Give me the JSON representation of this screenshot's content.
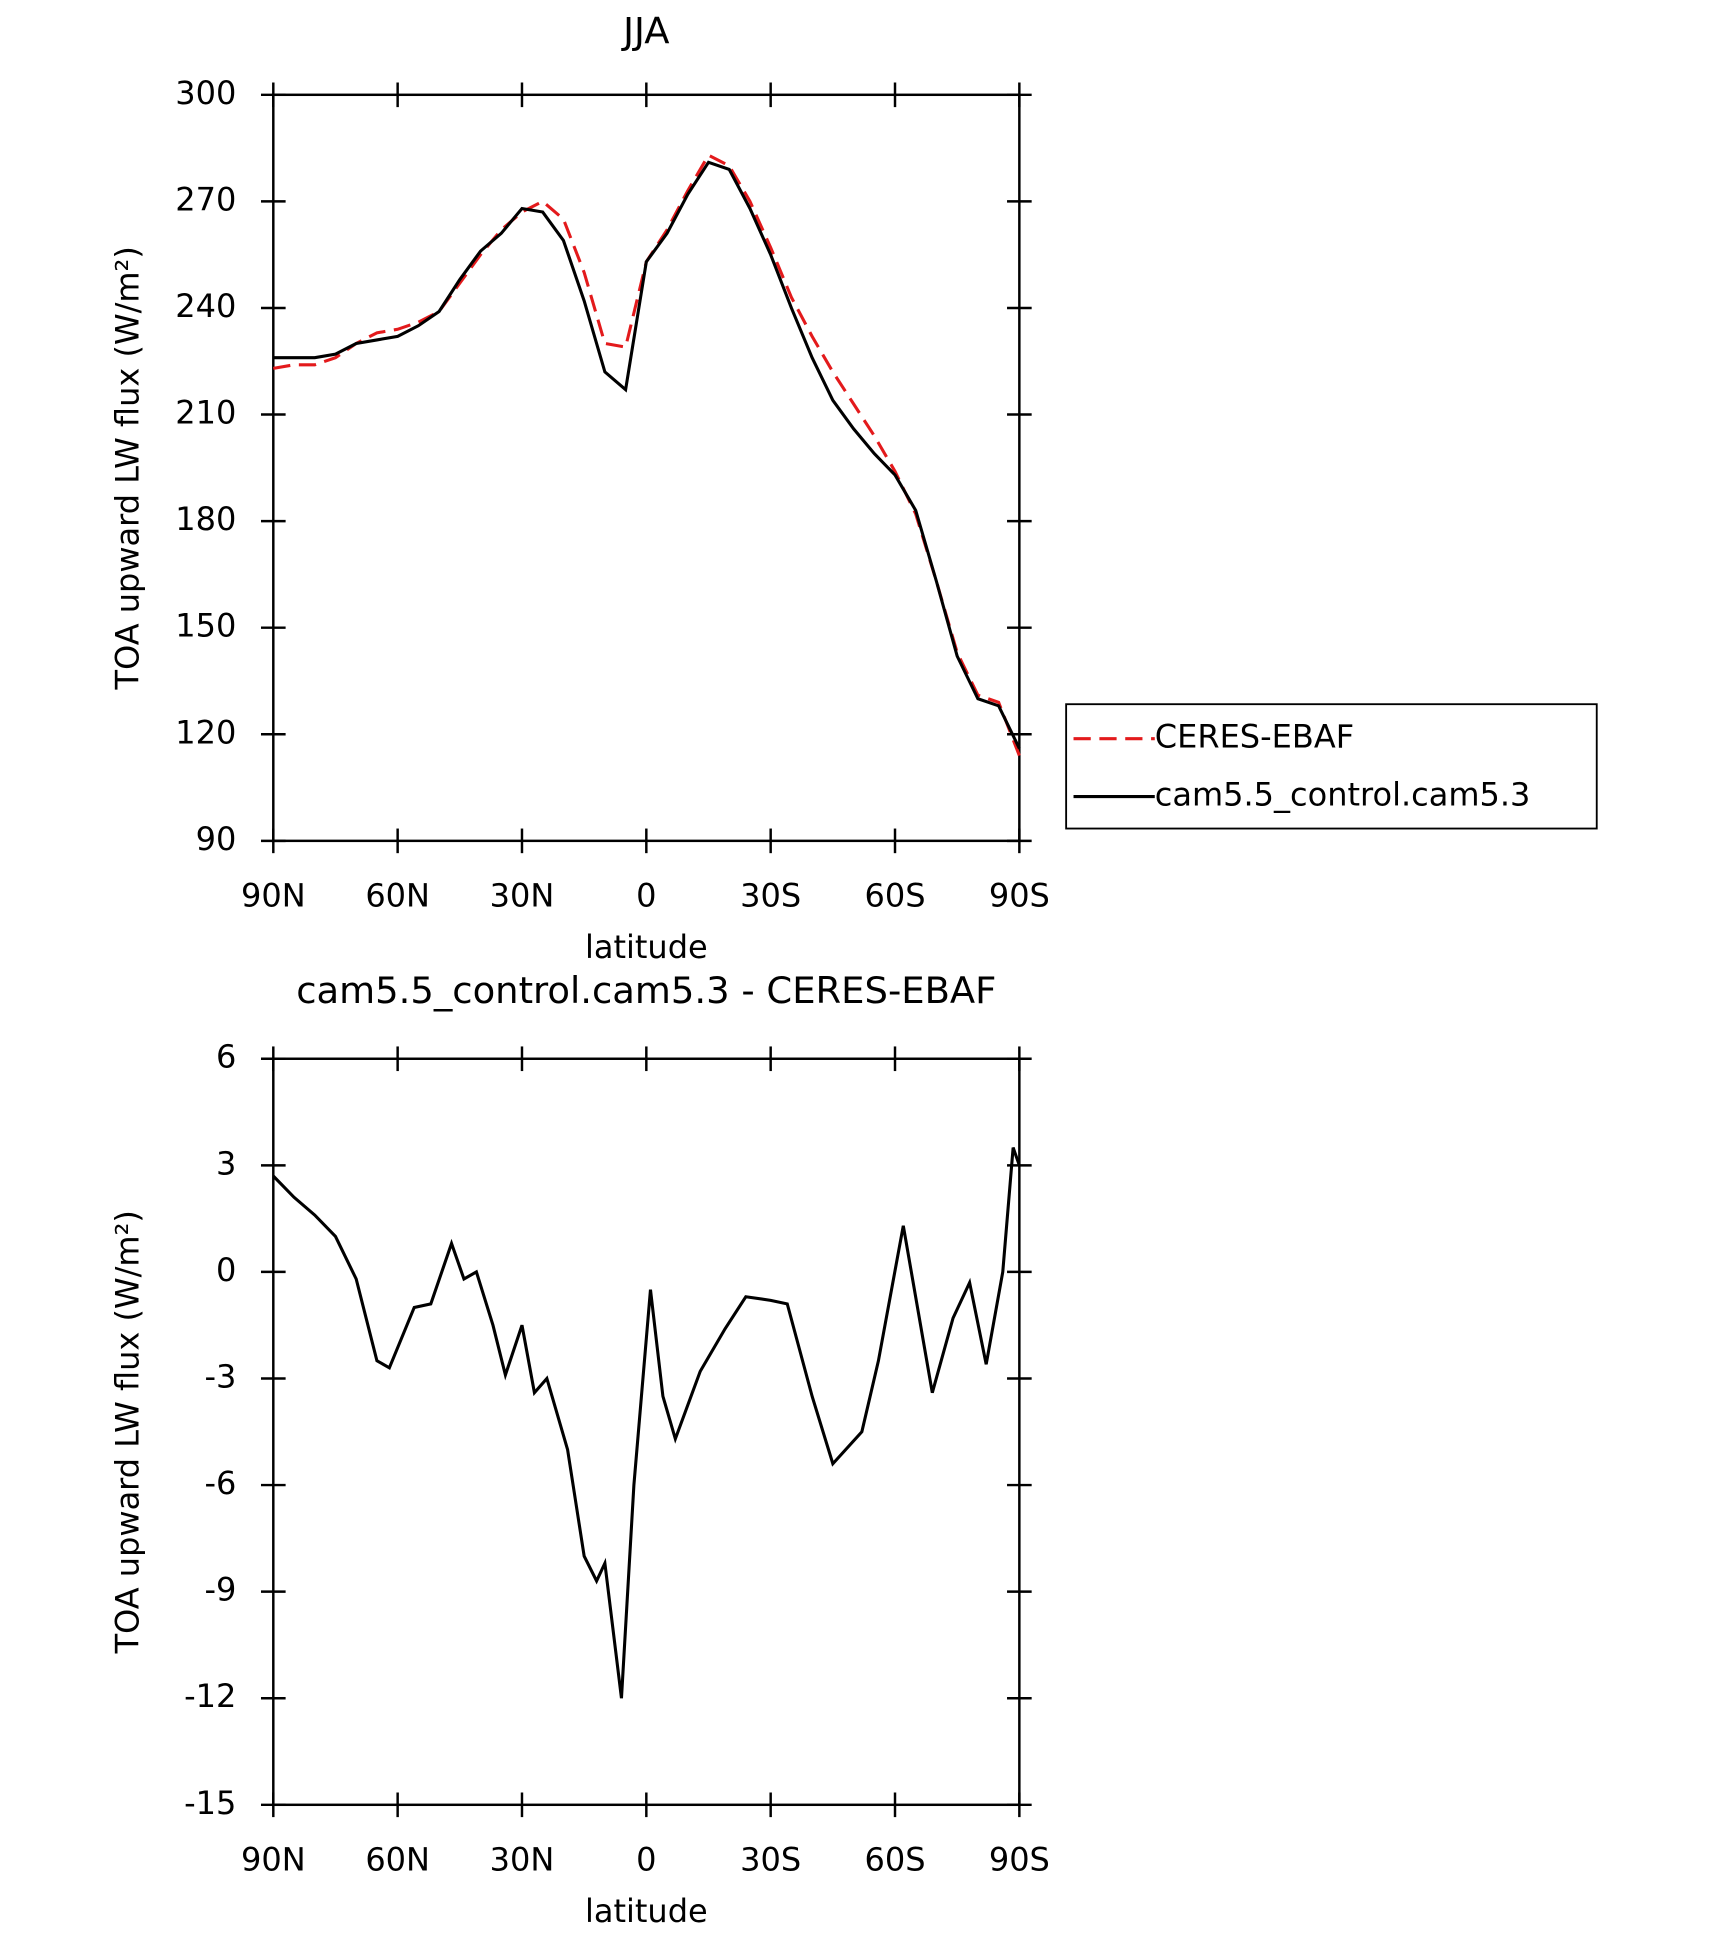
{
  "chart_data": [
    {
      "type": "line",
      "title": "JJA",
      "xlabel": "latitude",
      "ylabel": "TOA upward LW flux (W/m²)",
      "xlim": [
        90,
        -90
      ],
      "ylim": [
        90,
        300
      ],
      "xticks": [
        {
          "value": 90,
          "label": "90N"
        },
        {
          "value": 60,
          "label": "60N"
        },
        {
          "value": 30,
          "label": "30N"
        },
        0,
        {
          "value": -30,
          "label": "30S"
        },
        {
          "value": -60,
          "label": "60S"
        },
        {
          "value": -90,
          "label": "90S"
        }
      ],
      "yticks": [
        90,
        120,
        150,
        180,
        210,
        240,
        270,
        300
      ],
      "legend": "outside right",
      "x": [
        90,
        85,
        80,
        75,
        70,
        65,
        60,
        55,
        50,
        45,
        40,
        35,
        30,
        25,
        20,
        15,
        10,
        5,
        0,
        -5,
        -10,
        -15,
        -20,
        -25,
        -30,
        -35,
        -40,
        -45,
        -50,
        -55,
        -60,
        -65,
        -70,
        -75,
        -80,
        -85,
        -90
      ],
      "series": [
        {
          "name": "CERES-EBAF",
          "color": "#e31a1c",
          "style": "dashed",
          "values": [
            223,
            224,
            224,
            226,
            230,
            233,
            234,
            236,
            239,
            247,
            255,
            262,
            267,
            270,
            265,
            250,
            230,
            229,
            253,
            262,
            273,
            283,
            280,
            270,
            257,
            243,
            232,
            222,
            213,
            204,
            194,
            182,
            163,
            143,
            131,
            129,
            114
          ]
        },
        {
          "name": "cam5.5_control.cam5.3",
          "color": "#000000",
          "style": "solid",
          "values": [
            226,
            226,
            226,
            227,
            230,
            231,
            232,
            235,
            239,
            248,
            256,
            261,
            268,
            267,
            259,
            242,
            222,
            217,
            253,
            261,
            272,
            281,
            279,
            268,
            255,
            240,
            226,
            214,
            206,
            199,
            193,
            183,
            163,
            142,
            130,
            128,
            116
          ]
        }
      ]
    },
    {
      "type": "line",
      "title": "cam5.5_control.cam5.3 - CERES-EBAF",
      "xlabel": "latitude",
      "ylabel": "TOA upward LW flux (W/m²)",
      "xlim": [
        90,
        -90
      ],
      "ylim": [
        -15,
        6
      ],
      "xticks": [
        {
          "value": 90,
          "label": "90N"
        },
        {
          "value": 60,
          "label": "60N"
        },
        {
          "value": 30,
          "label": "30N"
        },
        0,
        {
          "value": -30,
          "label": "30S"
        },
        {
          "value": -60,
          "label": "60S"
        },
        {
          "value": -90,
          "label": "90S"
        }
      ],
      "yticks": [
        -15,
        -12,
        -9,
        -6,
        -3,
        0,
        3,
        6
      ],
      "x": [
        90,
        85,
        80,
        75,
        70,
        65,
        62,
        56,
        52,
        47,
        44,
        41,
        37,
        34,
        30,
        27,
        24,
        19,
        15,
        12,
        10,
        6,
        3,
        -1,
        -4,
        -7,
        -13,
        -19,
        -24,
        -30,
        -34,
        -40,
        -45,
        -52,
        -56,
        -62,
        -69,
        -74,
        -78,
        -82,
        -86,
        -88.5,
        -90
      ],
      "series": [
        {
          "color": "#000000",
          "style": "solid",
          "values": [
            2.7,
            2.1,
            1.6,
            1.0,
            -0.2,
            -2.5,
            -2.7,
            -1.0,
            -0.9,
            0.8,
            -0.2,
            0,
            -1.5,
            -2.9,
            -1.5,
            -3.4,
            -3.0,
            -5.0,
            -8.0,
            -8.7,
            -8.2,
            -12.0,
            -6.0,
            -0.5,
            -3.5,
            -4.7,
            -2.8,
            -1.6,
            -0.7,
            -0.8,
            -0.9,
            -3.5,
            -5.4,
            -4.5,
            -2.5,
            1.3,
            -3.4,
            -1.3,
            -0.3,
            -2.6,
            0,
            3.5,
            3.0
          ]
        }
      ]
    }
  ]
}
